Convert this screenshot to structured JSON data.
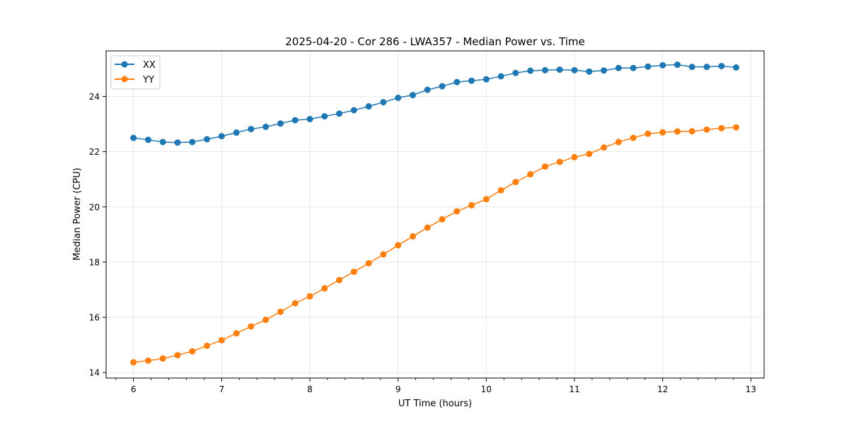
{
  "chart_data": {
    "type": "line",
    "title": "2025-04-20 - Cor 286 - LWA357 - Median Power vs. Time",
    "xlabel": "UT Time (hours)",
    "ylabel": "Median Power (CPU)",
    "xlim": [
      5.69,
      13.15
    ],
    "ylim": [
      13.8,
      25.65
    ],
    "xticks": [
      6,
      7,
      8,
      9,
      10,
      11,
      12,
      13
    ],
    "yticks": [
      14,
      16,
      18,
      20,
      22,
      24
    ],
    "xtick_labels": [
      "6",
      "7",
      "8",
      "9",
      "10",
      "11",
      "12",
      "13"
    ],
    "ytick_labels": [
      "14",
      "16",
      "18",
      "20",
      "22",
      "24"
    ],
    "minor_xtick_step": 0.2,
    "grid": true,
    "legend_position": "top-left",
    "x": [
      6.0,
      6.167,
      6.333,
      6.5,
      6.667,
      6.833,
      7.0,
      7.167,
      7.333,
      7.5,
      7.667,
      7.833,
      8.0,
      8.167,
      8.333,
      8.5,
      8.667,
      8.833,
      9.0,
      9.167,
      9.333,
      9.5,
      9.667,
      9.833,
      10.0,
      10.167,
      10.333,
      10.5,
      10.667,
      10.833,
      11.0,
      11.167,
      11.333,
      11.5,
      11.667,
      11.833,
      12.0,
      12.167,
      12.333,
      12.5,
      12.667,
      12.833
    ],
    "series": [
      {
        "name": "XX",
        "color": "#1f77b4",
        "values": [
          22.5,
          22.43,
          22.35,
          22.33,
          22.35,
          22.45,
          22.56,
          22.69,
          22.82,
          22.9,
          23.02,
          23.14,
          23.18,
          23.28,
          23.38,
          23.5,
          23.64,
          23.79,
          23.95,
          24.05,
          24.24,
          24.37,
          24.52,
          24.57,
          24.62,
          24.73,
          24.85,
          24.93,
          24.95,
          24.97,
          24.95,
          24.9,
          24.94,
          25.03,
          25.03,
          25.08,
          25.13,
          25.15,
          25.07,
          25.07,
          25.1,
          25.05
        ]
      },
      {
        "name": "YY",
        "color": "#ff7f0e",
        "values": [
          14.37,
          14.43,
          14.51,
          14.63,
          14.77,
          14.97,
          15.17,
          15.42,
          15.67,
          15.91,
          16.2,
          16.51,
          16.76,
          17.05,
          17.35,
          17.65,
          17.96,
          18.28,
          18.61,
          18.93,
          19.25,
          19.55,
          19.84,
          20.06,
          20.28,
          20.6,
          20.9,
          21.18,
          21.46,
          21.63,
          21.8,
          21.92,
          22.15,
          22.35,
          22.5,
          22.65,
          22.7,
          22.73,
          22.74,
          22.8,
          22.85,
          22.88
        ]
      }
    ]
  }
}
